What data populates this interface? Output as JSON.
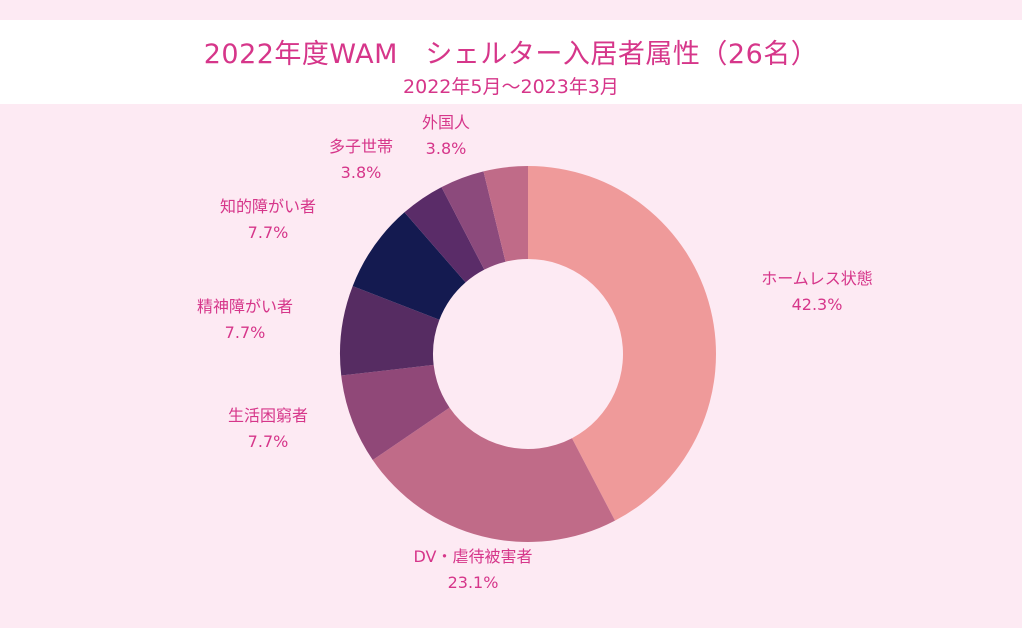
{
  "chart_data": {
    "type": "pie",
    "title": "2022年度WAM　シェルター入居者属性（26名）",
    "subtitle": "2022年5月～2023年3月",
    "slices": [
      {
        "label": "ホームレス状態",
        "value": 42.3,
        "value_label": "42.3%",
        "color": "#ef9a9a"
      },
      {
        "label": "DV・虐待被害者",
        "value": 23.1,
        "value_label": "23.1%",
        "color": "#c06b88"
      },
      {
        "label": "生活困窮者",
        "value": 7.7,
        "value_label": "7.7%",
        "color": "#904878"
      },
      {
        "label": "精神障がい者",
        "value": 7.7,
        "value_label": "7.7%",
        "color": "#562c62"
      },
      {
        "label": "知的障がい者",
        "value": 7.7,
        "value_label": "7.7%",
        "color": "#141a50"
      },
      {
        "label": "多子世帯",
        "value": 3.8,
        "value_label": "3.8%",
        "color": "#5a2c68"
      },
      {
        "label": "外国人",
        "value": 3.8,
        "value_label": "3.8%",
        "color": "#8c4a7c"
      },
      {
        "label": "",
        "value": 3.8,
        "value_label": "",
        "color": "#c06b88"
      }
    ]
  }
}
